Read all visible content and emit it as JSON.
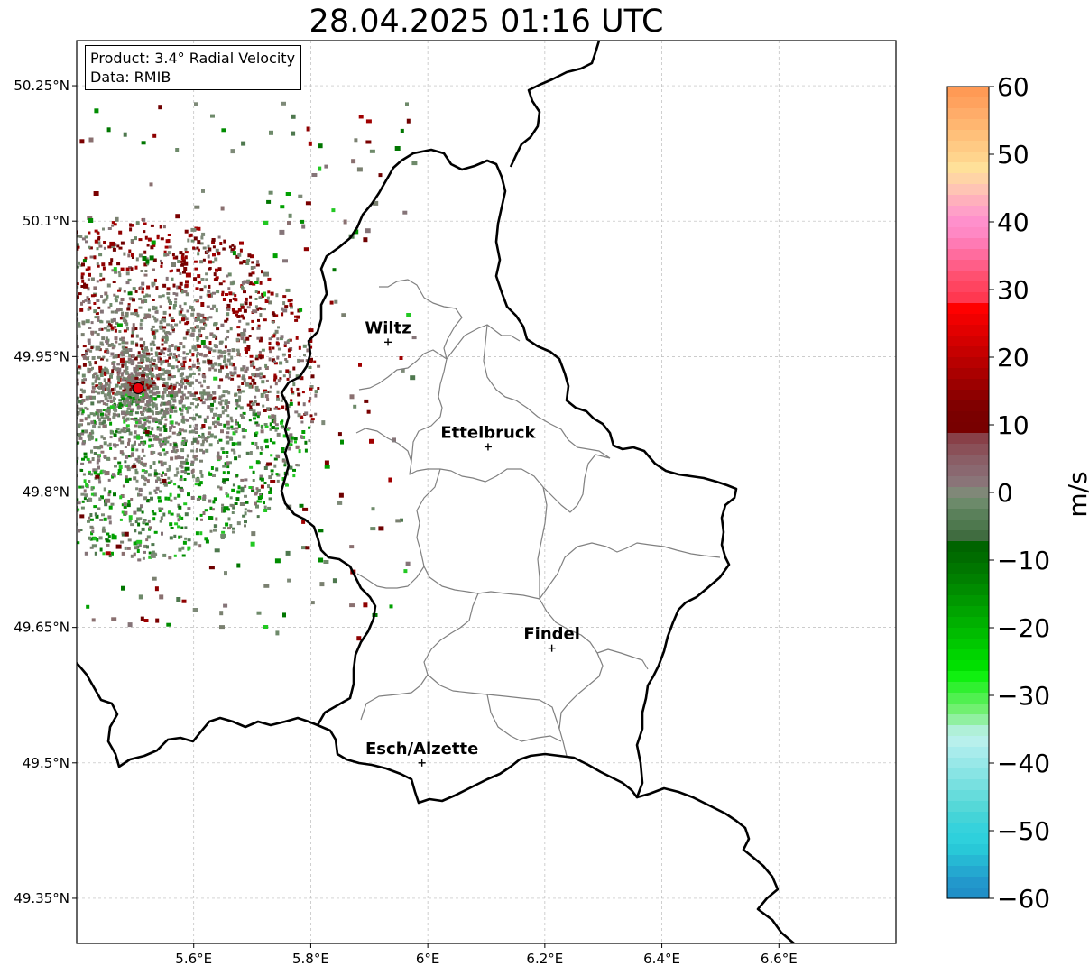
{
  "title": "28.04.2025 01:16 UTC",
  "info": {
    "product_line": "Product: 3.4° Radial Velocity",
    "data_line": "Data: RMIB"
  },
  "map": {
    "lon_range": [
      5.4,
      6.8
    ],
    "lat_range": [
      49.3,
      50.3
    ],
    "lon_ticks": [
      {
        "value": 5.6,
        "label": "5.6°E"
      },
      {
        "value": 5.8,
        "label": "5.8°E"
      },
      {
        "value": 6.0,
        "label": "6°E"
      },
      {
        "value": 6.2,
        "label": "6.2°E"
      },
      {
        "value": 6.4,
        "label": "6.4°E"
      },
      {
        "value": 6.6,
        "label": "6.6°E"
      }
    ],
    "lat_ticks": [
      {
        "value": 50.25,
        "label": "50.25°N"
      },
      {
        "value": 50.1,
        "label": "50.1°N"
      },
      {
        "value": 49.95,
        "label": "49.95°N"
      },
      {
        "value": 49.8,
        "label": "49.8°N"
      },
      {
        "value": 49.65,
        "label": "49.65°N"
      },
      {
        "value": 49.5,
        "label": "49.5°N"
      },
      {
        "value": 49.35,
        "label": "49.35°N"
      }
    ],
    "grid": true,
    "radar_site": {
      "lon": 5.505,
      "lat": 49.915,
      "color": "#e8000b"
    },
    "cities": [
      {
        "name": "Wiltz",
        "lon": 5.932,
        "lat": 49.966
      },
      {
        "name": "Ettelbruck",
        "lon": 6.103,
        "lat": 49.85
      },
      {
        "name": "Findel",
        "lon": 6.212,
        "lat": 49.627
      },
      {
        "name": "Esch/Alzette",
        "lon": 5.99,
        "lat": 49.5
      }
    ],
    "border_color": "#000000",
    "canton_color": "#808080"
  },
  "colorbar": {
    "min": -60,
    "max": 60,
    "unit": "m/s",
    "ticks": [
      {
        "value": 60,
        "label": "60"
      },
      {
        "value": 50,
        "label": "50"
      },
      {
        "value": 40,
        "label": "40"
      },
      {
        "value": 30,
        "label": "30"
      },
      {
        "value": 20,
        "label": "20"
      },
      {
        "value": 10,
        "label": "10"
      },
      {
        "value": 0,
        "label": "0"
      },
      {
        "value": -10,
        "label": "−10"
      },
      {
        "value": -20,
        "label": "−20"
      },
      {
        "value": -30,
        "label": "−30"
      },
      {
        "value": -40,
        "label": "−40"
      },
      {
        "value": -50,
        "label": "−50"
      },
      {
        "value": -60,
        "label": "−60"
      }
    ],
    "colors_top_to_bottom": [
      "#ff9a55",
      "#ffa25e",
      "#ffac69",
      "#ffb670",
      "#ffc07a",
      "#ffca84",
      "#ffd48d",
      "#ffe099",
      "#ffd4a6",
      "#ffc4b4",
      "#ffb0bc",
      "#ffa0c8",
      "#ff90cc",
      "#ff88c4",
      "#ff7ab4",
      "#ff6c9e",
      "#ff5e88",
      "#ff5070",
      "#ff4460",
      "#ff3850",
      "#ff0000",
      "#f00000",
      "#e20000",
      "#d40000",
      "#c60000",
      "#b80000",
      "#aa0000",
      "#9c0000",
      "#8e0000",
      "#800000",
      "#7a0000",
      "#780000",
      "#884048",
      "#8a5058",
      "#8a5e66",
      "#8a6870",
      "#8a7478",
      "#808878",
      "#6c8a6a",
      "#5a805a",
      "#4e784e",
      "#406c40",
      "#006400",
      "#006c00",
      "#007600",
      "#008000",
      "#008c00",
      "#009800",
      "#00a400",
      "#00b000",
      "#00bc00",
      "#00c800",
      "#00d400",
      "#00e000",
      "#10f010",
      "#30f030",
      "#50f050",
      "#70f070",
      "#90f0a0",
      "#b0f0d8",
      "#b8f0ec",
      "#a8ecec",
      "#98e8e8",
      "#88e4e4",
      "#78e0e0",
      "#66dcdc",
      "#55d8d8",
      "#44d4d8",
      "#36d2dc",
      "#2ed0dc",
      "#28c8d8",
      "#26b8d4",
      "#24a8d0",
      "#2298cc",
      "#2090c8"
    ]
  }
}
